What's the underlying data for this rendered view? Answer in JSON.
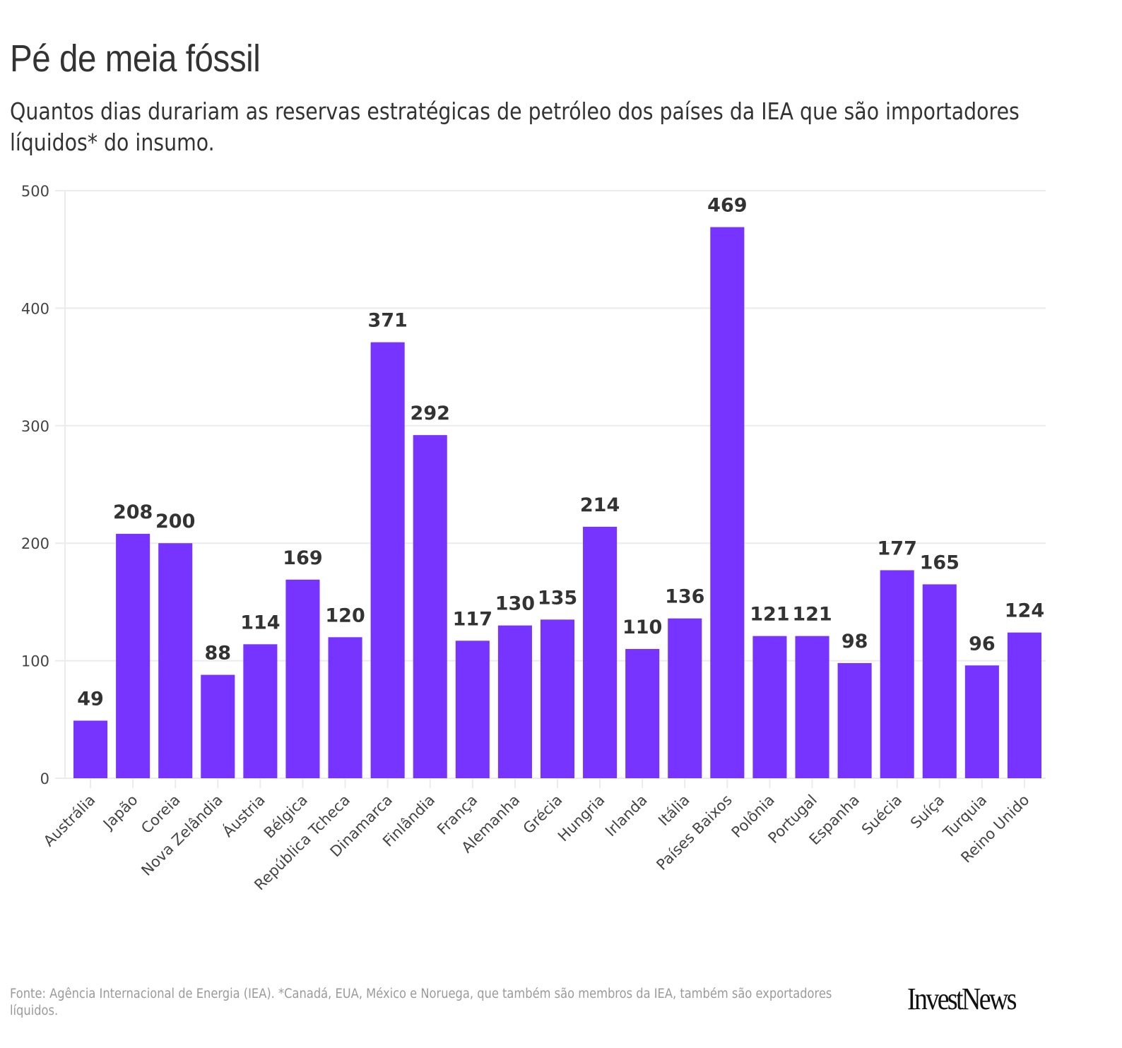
{
  "header": {
    "title": "Pé de meia fóssil",
    "subtitle": "Quantos dias durariam as reservas estratégicas de petróleo dos países da IEA que são importadores líquidos* do insumo."
  },
  "footer": {
    "source": "Fonte: Agência Internacional de Energia (IEA). *Canadá, EUA, México e Noruega, que também são membros da IEA, também são exportadores líquidos.",
    "logo": "InvestNews"
  },
  "colors": {
    "bar": "#7733ff",
    "label": "#333333",
    "grid": "#ebebeb",
    "axis_text": "#444444"
  },
  "chart_data": {
    "type": "bar",
    "title": "Pé de meia fóssil",
    "subtitle": "Quantos dias durariam as reservas estratégicas de petróleo dos países da IEA que são importadores líquidos* do insumo.",
    "xlabel": "",
    "ylabel": "",
    "ylim": [
      0,
      500
    ],
    "yticks": [
      0,
      100,
      200,
      300,
      400,
      500
    ],
    "grid": true,
    "legend": "none",
    "data_labels": true,
    "categories": [
      "Austrália",
      "Japão",
      "Coreia",
      "Nova Zelândia",
      "Áustria",
      "Bélgica",
      "República Tcheca",
      "Dinamarca",
      "Finlândia",
      "França",
      "Alemanha",
      "Grécia",
      "Hungria",
      "Irlanda",
      "Itália",
      "Países Baixos",
      "Polônia",
      "Portugal",
      "Espanha",
      "Suécia",
      "Suíça",
      "Turquia",
      "Reino Unido"
    ],
    "values": [
      49,
      208,
      200,
      88,
      114,
      169,
      120,
      371,
      292,
      117,
      130,
      135,
      214,
      110,
      136,
      469,
      121,
      121,
      98,
      177,
      165,
      96,
      124
    ]
  }
}
